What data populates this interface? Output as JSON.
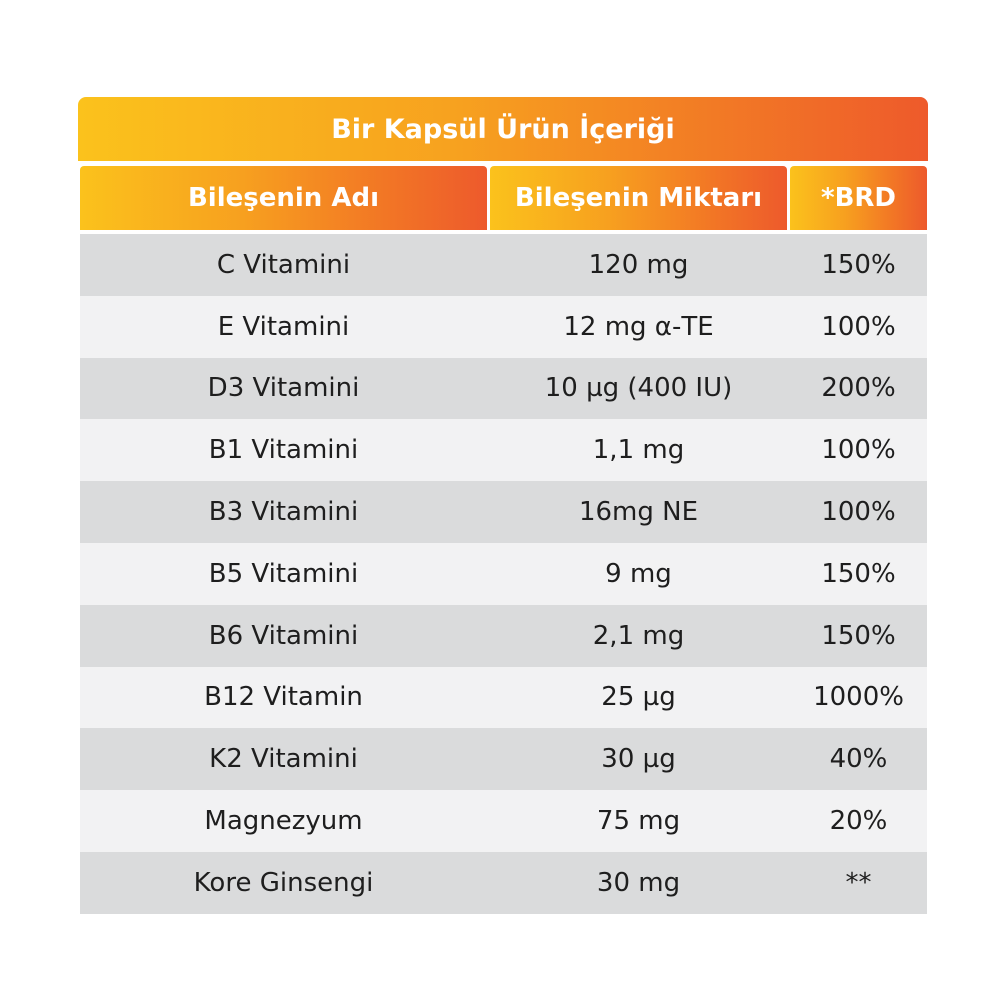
{
  "title": "Bir Kapsül Ürün İçeriği",
  "headers": {
    "name": "Bileşenin Adı",
    "amount": "Bileşenin Miktarı",
    "brd": "*BRD"
  },
  "rows": [
    {
      "name": "C Vitamini",
      "amount": "120 mg",
      "brd": "150%"
    },
    {
      "name": "E Vitamini",
      "amount": "12 mg α-TE",
      "brd": "100%"
    },
    {
      "name": "D3 Vitamini",
      "amount": "10 µg (400 IU)",
      "brd": "200%"
    },
    {
      "name": "B1 Vitamini",
      "amount": "1,1 mg",
      "brd": "100%"
    },
    {
      "name": "B3 Vitamini",
      "amount": "16mg NE",
      "brd": "100%"
    },
    {
      "name": "B5 Vitamini",
      "amount": "9 mg",
      "brd": "150%"
    },
    {
      "name": "B6 Vitamini",
      "amount": "2,1 mg",
      "brd": "150%"
    },
    {
      "name": "B12 Vitamin",
      "amount": "25 µg",
      "brd": "1000%"
    },
    {
      "name": "K2 Vitamini",
      "amount": "30 µg",
      "brd": "40%"
    },
    {
      "name": "Magnezyum",
      "amount": "75 mg",
      "brd": "20%"
    },
    {
      "name": "Kore Ginsengi",
      "amount": "30 mg",
      "brd": "**"
    }
  ],
  "colors": {
    "gradient_start": "#fbc21c",
    "gradient_end": "#ee5a2b",
    "row_dark": "#dadbdc",
    "row_light": "#f2f2f3"
  }
}
